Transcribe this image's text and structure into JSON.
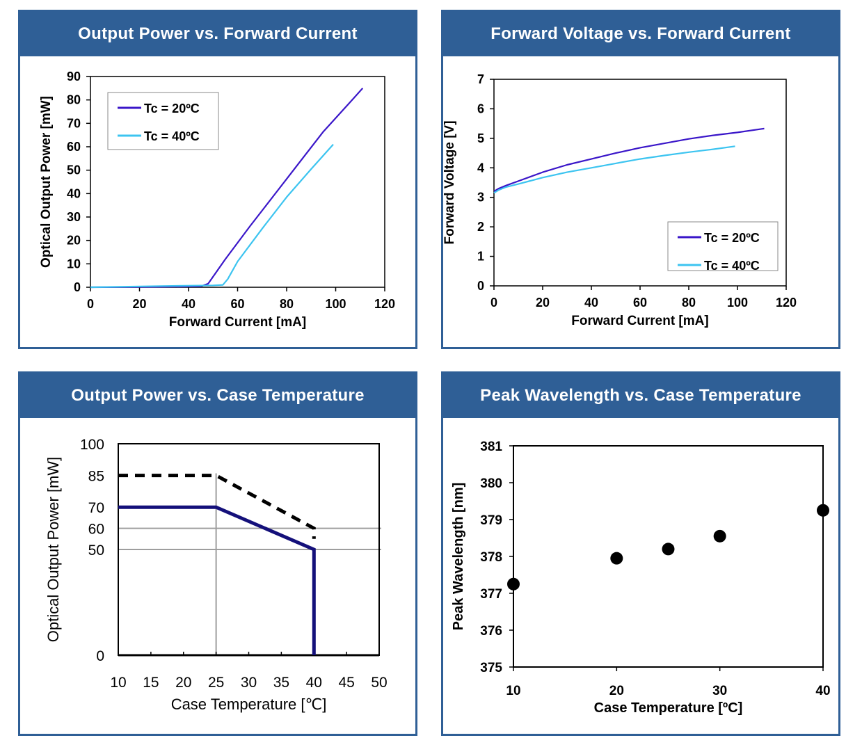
{
  "colors": {
    "header_bg": "#2f5f96",
    "series_20": "#3a16c9",
    "series_40": "#3cc4f0",
    "thick_line": "#14107a",
    "grid_gray": "#9e9e9e"
  },
  "panels": [
    {
      "title": "Output Power vs. Forward Current"
    },
    {
      "title": "Forward Voltage vs. Forward Current"
    },
    {
      "title": "Output Power vs. Case Temperature"
    },
    {
      "title": "Peak Wavelength vs. Case Temperature"
    }
  ],
  "chart_data": [
    {
      "type": "line",
      "xlabel": "Forward Current [mA]",
      "ylabel": "Optical Output Power [mW]",
      "xlim": [
        0,
        120
      ],
      "ylim": [
        0,
        90
      ],
      "xticks": [
        0,
        20,
        40,
        60,
        80,
        100,
        120
      ],
      "yticks": [
        0,
        10,
        20,
        30,
        40,
        50,
        60,
        70,
        80,
        90
      ],
      "legend_position": "top-left",
      "series": [
        {
          "name": "Tc = 20ºC",
          "color": "#3a16c9",
          "x": [
            0,
            30,
            45,
            48,
            55,
            65,
            75,
            85,
            95,
            105,
            111
          ],
          "y": [
            0,
            0.2,
            0.4,
            1.5,
            12,
            26,
            39.5,
            53,
            66.5,
            78,
            85
          ]
        },
        {
          "name": "Tc = 40ºC",
          "color": "#3cc4f0",
          "x": [
            0,
            29,
            50,
            54,
            56,
            60,
            70,
            80,
            90,
            99
          ],
          "y": [
            0,
            0.5,
            0.8,
            1,
            3.5,
            11,
            25,
            38.5,
            50.5,
            61
          ]
        }
      ]
    },
    {
      "type": "line",
      "xlabel": "Forward Current [mA]",
      "ylabel": "Forward Voltage [V]",
      "xlim": [
        0,
        120
      ],
      "ylim": [
        0,
        7
      ],
      "xticks": [
        0,
        20,
        40,
        60,
        80,
        100,
        120
      ],
      "yticks": [
        0,
        1,
        2,
        3,
        4,
        5,
        6,
        7
      ],
      "legend_position": "bottom-right",
      "series": [
        {
          "name": "Tc = 20ºC",
          "color": "#3a16c9",
          "x": [
            0,
            2,
            5,
            10,
            20,
            30,
            40,
            50,
            60,
            70,
            80,
            90,
            100,
            110,
            111
          ],
          "y": [
            3.2,
            3.3,
            3.4,
            3.55,
            3.85,
            4.1,
            4.3,
            4.5,
            4.68,
            4.83,
            4.98,
            5.1,
            5.2,
            5.32,
            5.33
          ]
        },
        {
          "name": "Tc = 40ºC",
          "color": "#3cc4f0",
          "x": [
            0,
            2,
            5,
            10,
            20,
            30,
            40,
            50,
            60,
            70,
            80,
            90,
            99
          ],
          "y": [
            3.15,
            3.25,
            3.35,
            3.45,
            3.67,
            3.85,
            4.0,
            4.15,
            4.3,
            4.42,
            4.53,
            4.63,
            4.73
          ]
        }
      ]
    },
    {
      "type": "line",
      "xlabel": "Case Temperature [℃]",
      "ylabel": "Optical Output Power [mW]",
      "xlim": [
        10,
        50
      ],
      "ylim": [
        0,
        100
      ],
      "xticks": [
        10,
        15,
        20,
        25,
        30,
        35,
        40,
        45,
        50
      ],
      "yticks": [
        0,
        50,
        60,
        70,
        85,
        100
      ],
      "reference_lines": {
        "vertical_x": 25,
        "horizontal_y": [
          50,
          60
        ]
      },
      "series": [
        {
          "style": "solid",
          "color": "#14107a",
          "x": [
            10,
            25,
            40,
            40
          ],
          "y": [
            70,
            70,
            50,
            0
          ]
        },
        {
          "style": "dashed",
          "color": "#000000",
          "x": [
            10,
            25,
            40,
            40
          ],
          "y": [
            85,
            85,
            60,
            55
          ]
        }
      ]
    },
    {
      "type": "scatter",
      "xlabel": "Case Temperature [ºC]",
      "ylabel": "Peak Wavelength [nm]",
      "xlim": [
        10,
        40
      ],
      "ylim": [
        375,
        381
      ],
      "xticks": [
        10,
        20,
        30,
        40
      ],
      "yticks": [
        375,
        376,
        377,
        378,
        379,
        380,
        381
      ],
      "series": [
        {
          "x": [
            10,
            20,
            25,
            30,
            40
          ],
          "y": [
            377.25,
            377.95,
            378.2,
            378.55,
            379.25
          ]
        }
      ]
    }
  ]
}
